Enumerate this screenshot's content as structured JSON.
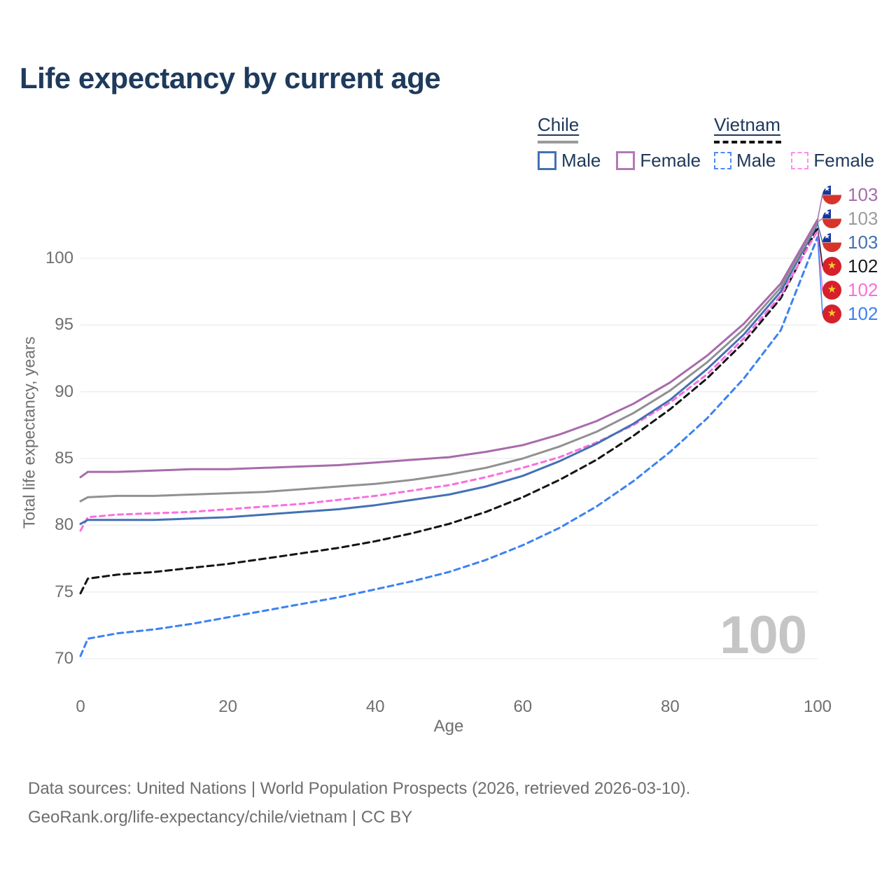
{
  "title": "Life expectancy by current age",
  "watermark": "100",
  "legend": {
    "groups": [
      {
        "country": "Chile",
        "line_style": "solid",
        "line_color": "#9a9a9a",
        "items": [
          {
            "label": "Male",
            "color": "#4371b4"
          },
          {
            "label": "Female",
            "color": "#b279b8"
          }
        ]
      },
      {
        "country": "Vietnam",
        "line_style": "dashed",
        "line_color": "#141414",
        "items": [
          {
            "label": "Male",
            "color": "#4b8bf5"
          },
          {
            "label": "Female",
            "color": "#fc8df0"
          }
        ]
      }
    ]
  },
  "y_axis": {
    "title": "Total life expectancy, years",
    "ticks": [
      70,
      75,
      80,
      85,
      90,
      95,
      100
    ]
  },
  "x_axis": {
    "title": "Age",
    "ticks": [
      0,
      20,
      40,
      60,
      80,
      100
    ]
  },
  "end_labels": [
    {
      "value": "103",
      "flag": "chile",
      "series_id": "chile-female",
      "color": "#a76bac"
    },
    {
      "value": "103",
      "flag": "chile",
      "series_id": "chile",
      "color": "#9c9c9c"
    },
    {
      "value": "103",
      "flag": "chile",
      "series_id": "chile-male",
      "color": "#4371b4"
    },
    {
      "value": "102",
      "flag": "vietnam",
      "series_id": "vietnam",
      "color": "#1a1a1a"
    },
    {
      "value": "102",
      "flag": "vietnam",
      "series_id": "vietnam-female",
      "color": "#fb6ede"
    },
    {
      "value": "102",
      "flag": "vietnam",
      "series_id": "vietnam-male",
      "color": "#3b82f2"
    }
  ],
  "source_line1": "Data sources: United Nations | World Population Prospects (2026, retrieved 2026-03-10).",
  "source_line2": "GeoRank.org/life-expectancy/chile/vietnam | CC BY",
  "chart_data": {
    "type": "line",
    "title": "Life expectancy by current age",
    "xlabel": "Age",
    "ylabel": "Total life expectancy, years",
    "xlim": [
      0,
      100
    ],
    "ylim": [
      69.5,
      104
    ],
    "grid": "horizontal",
    "legend_position": "top-right",
    "x": [
      0,
      1,
      5,
      10,
      15,
      20,
      25,
      30,
      35,
      40,
      45,
      50,
      55,
      60,
      65,
      70,
      75,
      80,
      85,
      90,
      95,
      100
    ],
    "series": [
      {
        "id": "vietnam-male",
        "name": "Vietnam Male",
        "color": "#3b82f2",
        "dash": "8 6",
        "values": [
          70.2,
          71.5,
          71.9,
          72.2,
          72.6,
          73.1,
          73.6,
          74.1,
          74.6,
          75.2,
          75.8,
          76.5,
          77.4,
          78.5,
          79.8,
          81.4,
          83.3,
          85.5,
          88.0,
          91.0,
          94.6,
          101.6
        ]
      },
      {
        "id": "vietnam",
        "name": "Vietnam",
        "color": "#141414",
        "dash": "9 6",
        "values": [
          74.9,
          76.0,
          76.3,
          76.5,
          76.8,
          77.1,
          77.5,
          77.9,
          78.3,
          78.8,
          79.4,
          80.1,
          81.0,
          82.1,
          83.4,
          84.9,
          86.7,
          88.7,
          91.0,
          93.7,
          97.0,
          102.3
        ]
      },
      {
        "id": "vietnam-female",
        "name": "Vietnam Female",
        "color": "#fb6ede",
        "dash": "7 6",
        "values": [
          79.6,
          80.6,
          80.8,
          80.9,
          81.0,
          81.2,
          81.4,
          81.6,
          81.9,
          82.2,
          82.6,
          83.0,
          83.6,
          84.3,
          85.1,
          86.2,
          87.5,
          89.2,
          91.3,
          94.0,
          97.2,
          102.1
        ]
      },
      {
        "id": "chile-male",
        "name": "Chile Male",
        "color": "#4371b4",
        "dash": null,
        "values": [
          80.1,
          80.4,
          80.4,
          80.4,
          80.5,
          80.6,
          80.8,
          81.0,
          81.2,
          81.5,
          81.9,
          82.3,
          82.9,
          83.7,
          84.8,
          86.1,
          87.6,
          89.4,
          91.7,
          94.3,
          97.5,
          102.6
        ]
      },
      {
        "id": "chile",
        "name": "Chile",
        "color": "#919191",
        "dash": null,
        "values": [
          81.8,
          82.1,
          82.2,
          82.2,
          82.3,
          82.4,
          82.5,
          82.7,
          82.9,
          83.1,
          83.4,
          83.8,
          84.3,
          85.0,
          85.9,
          87.0,
          88.4,
          90.1,
          92.2,
          94.7,
          97.8,
          102.7
        ]
      },
      {
        "id": "chile-female",
        "name": "Chile Female",
        "color": "#a76bac",
        "dash": null,
        "values": [
          83.6,
          84.0,
          84.0,
          84.1,
          84.2,
          84.2,
          84.3,
          84.4,
          84.5,
          84.7,
          84.9,
          85.1,
          85.5,
          86.0,
          86.8,
          87.8,
          89.1,
          90.7,
          92.7,
          95.1,
          98.1,
          102.9
        ]
      }
    ]
  }
}
